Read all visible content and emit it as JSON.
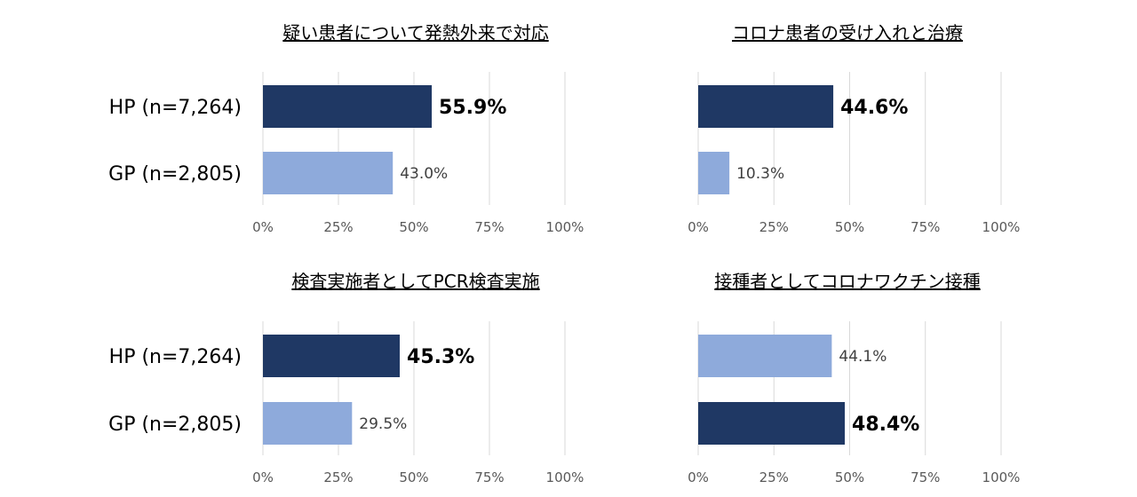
{
  "colors": {
    "dark": "#1f3864",
    "light": "#8eaadb",
    "grid": "#d9d9d9"
  },
  "chart_data": [
    {
      "type": "bar",
      "orientation": "horizontal",
      "title": "疑い患者について発熱外来で対応",
      "categories": [
        "HP (n=7,264)",
        "GP (n=2,805)"
      ],
      "values": [
        55.9,
        43.0
      ],
      "value_labels": [
        "55.9%",
        "43.0%"
      ],
      "highlight": [
        true,
        false
      ],
      "xlim": [
        0,
        100
      ],
      "xticks": [
        "0%",
        "25%",
        "50%",
        "75%",
        "100%"
      ],
      "grid": true
    },
    {
      "type": "bar",
      "orientation": "horizontal",
      "title": "コロナ患者の受け入れと治療",
      "categories": [
        "",
        ""
      ],
      "values": [
        44.6,
        10.3
      ],
      "value_labels": [
        "44.6%",
        "10.3%"
      ],
      "highlight": [
        true,
        false
      ],
      "xlim": [
        0,
        100
      ],
      "xticks": [
        "0%",
        "25%",
        "50%",
        "75%",
        "100%"
      ],
      "grid": true
    },
    {
      "type": "bar",
      "orientation": "horizontal",
      "title": "検査実施者としてPCR検査実施",
      "categories": [
        "HP (n=7,264)",
        "GP (n=2,805)"
      ],
      "values": [
        45.3,
        29.5
      ],
      "value_labels": [
        "45.3%",
        "29.5%"
      ],
      "highlight": [
        true,
        false
      ],
      "xlim": [
        0,
        100
      ],
      "xticks": [
        "0%",
        "25%",
        "50%",
        "75%",
        "100%"
      ],
      "grid": true
    },
    {
      "type": "bar",
      "orientation": "horizontal",
      "title": "接種者としてコロナワクチン接種",
      "categories": [
        "",
        ""
      ],
      "values": [
        44.1,
        48.4
      ],
      "value_labels": [
        "44.1%",
        "48.4%"
      ],
      "highlight": [
        false,
        true
      ],
      "xlim": [
        0,
        100
      ],
      "xticks": [
        "0%",
        "25%",
        "50%",
        "75%",
        "100%"
      ],
      "grid": true
    }
  ]
}
